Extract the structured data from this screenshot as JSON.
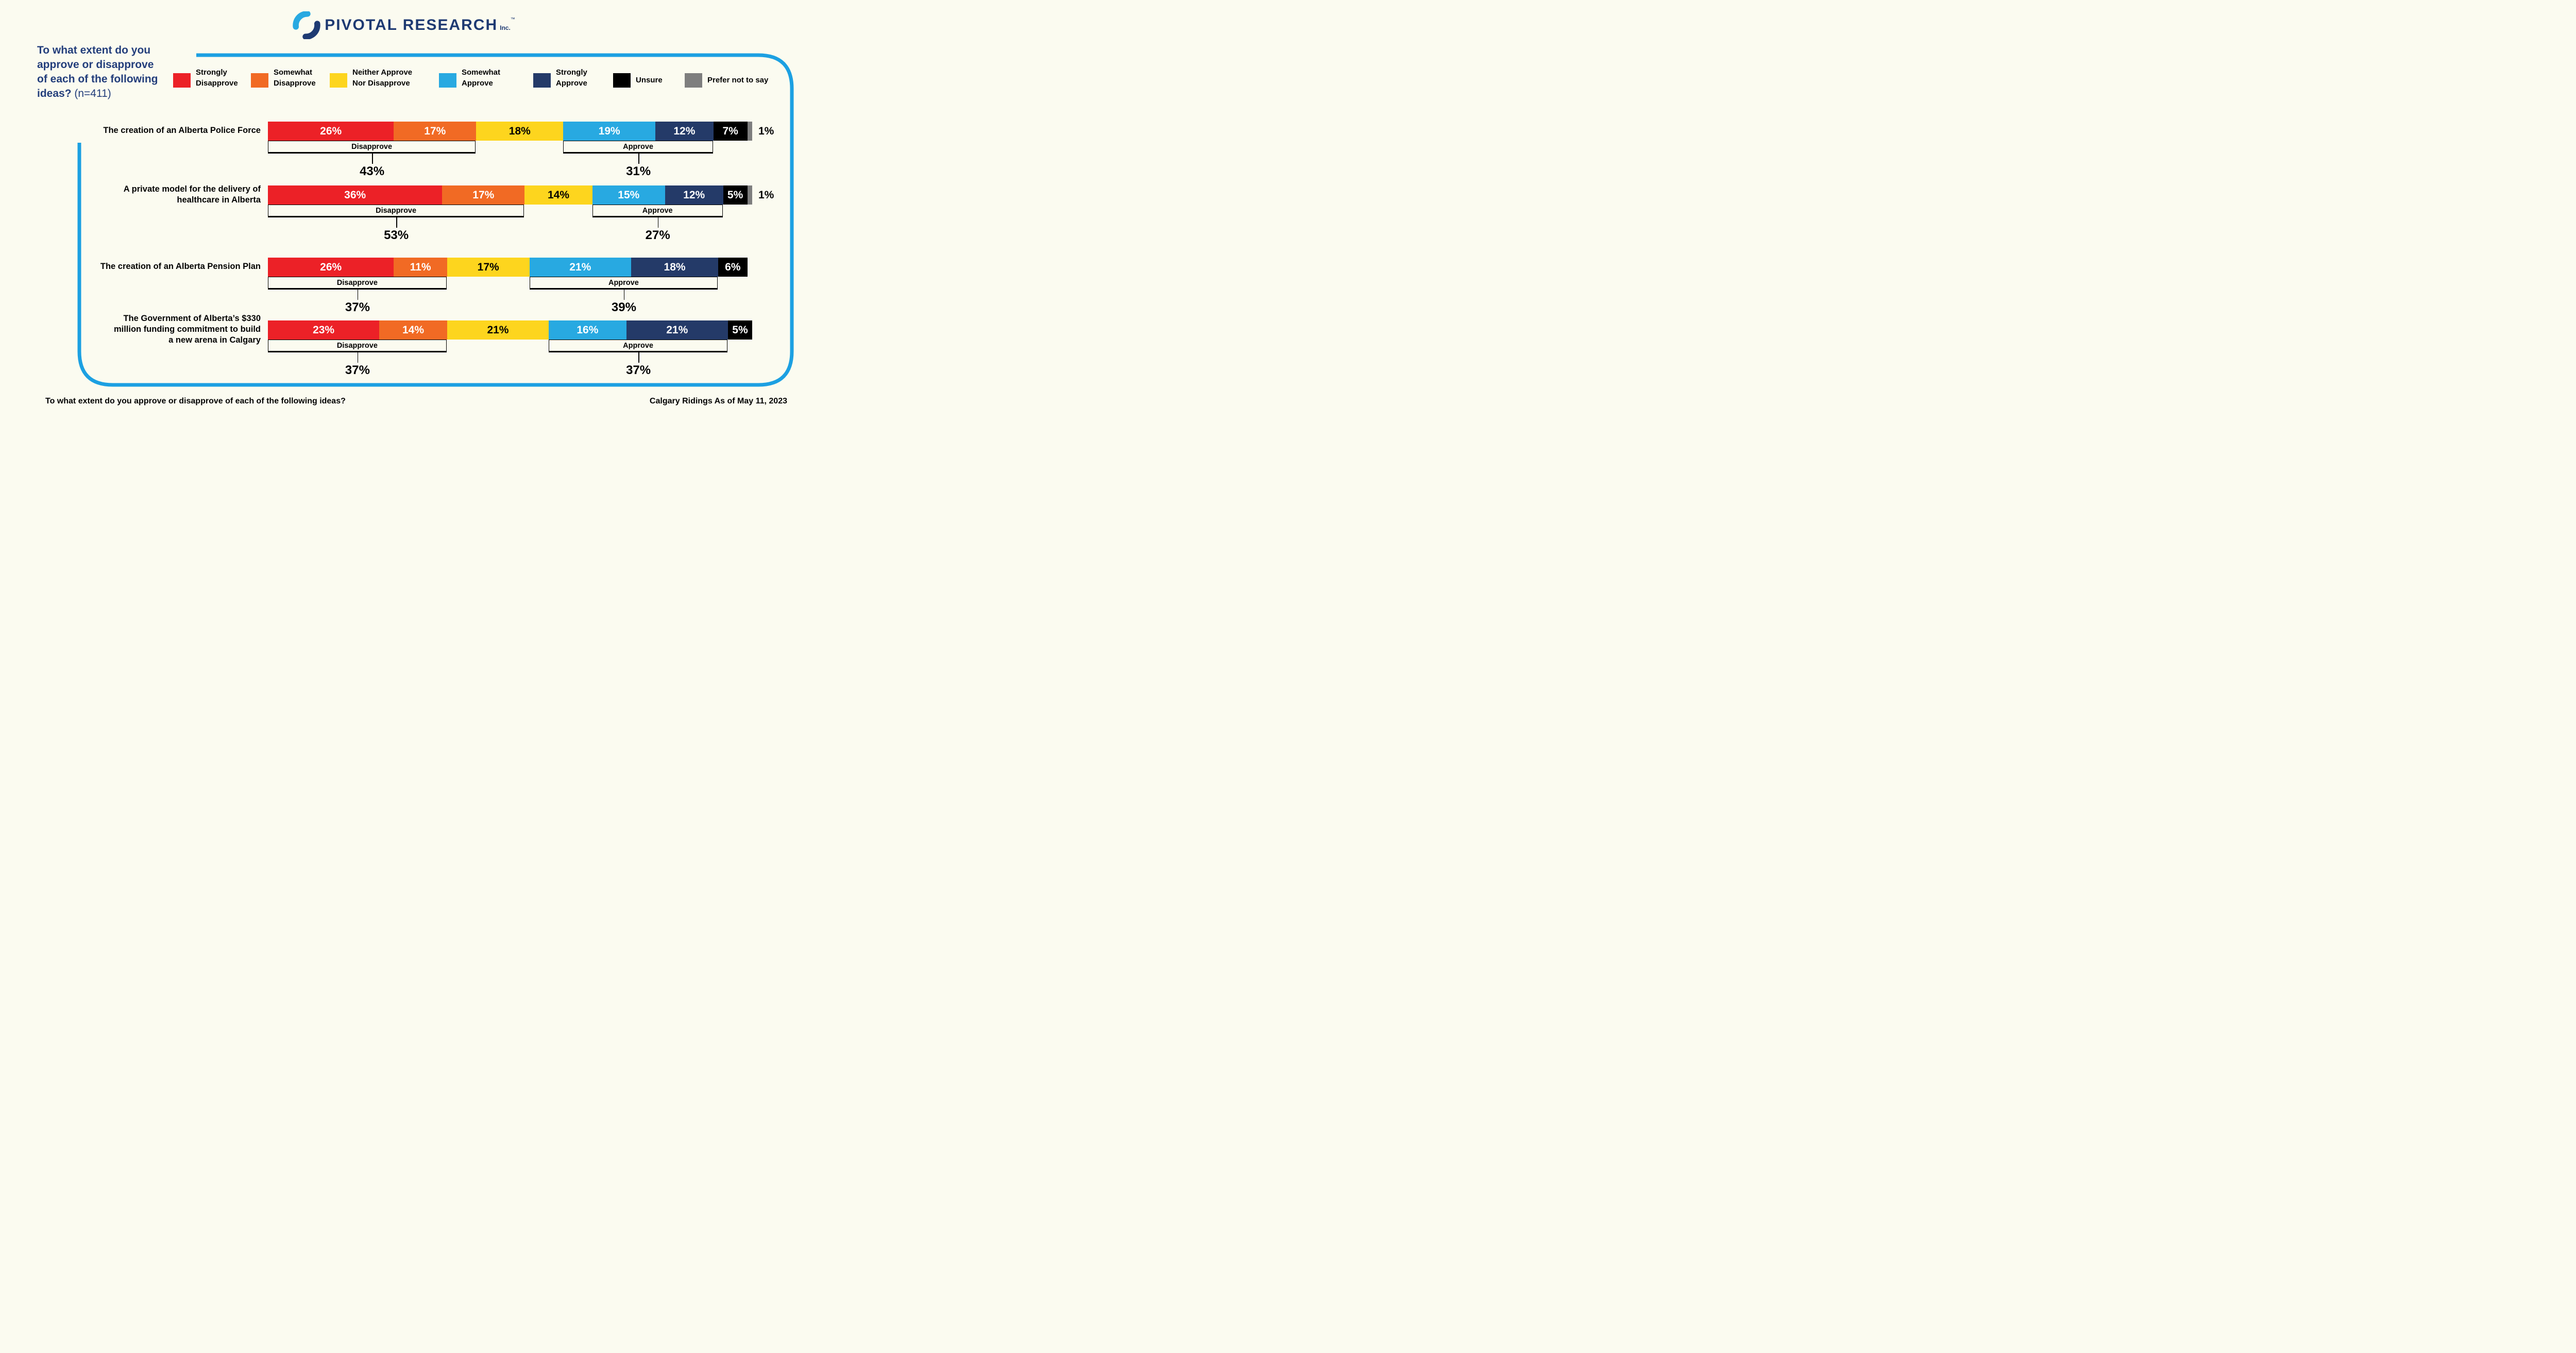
{
  "logo": {
    "name": "PIVOTAL RESEARCH",
    "suffix": "Inc.",
    "trademark": "™"
  },
  "title": {
    "line1": "To what extent do you",
    "line2": "approve or disapprove",
    "line3": "of each of the following",
    "line4_bold": "ideas?",
    "line4_note": "(n=411)"
  },
  "labels": {
    "disapprove": "Disapprove",
    "approve": "Approve"
  },
  "legend": [
    {
      "lines": [
        "Strongly",
        "Disapprove"
      ],
      "color": "#EC2127"
    },
    {
      "lines": [
        "Somewhat",
        "Disapprove"
      ],
      "color": "#F16A24"
    },
    {
      "lines": [
        "Neither Approve",
        "Nor Disapprove"
      ],
      "color": "#FDD51E"
    },
    {
      "lines": [
        "Somewhat",
        "Approve"
      ],
      "color": "#28A9E1"
    },
    {
      "lines": [
        "Strongly",
        "Approve"
      ],
      "color": "#243A68"
    },
    {
      "lines": [
        "Unsure"
      ],
      "color": "#000000"
    },
    {
      "lines": [
        "Prefer not to say"
      ],
      "color": "#7E7E7E"
    }
  ],
  "chart_data": {
    "type": "bar",
    "stacked": true,
    "unit": "%",
    "categories": [
      "The creation of an Alberta Police Force",
      "A private model for the delivery of healthcare in Alberta",
      "The creation of an Alberta Pension Plan",
      "The Government of Alberta’s $330 million funding commitment to build a new arena in Calgary"
    ],
    "category_lines": [
      [
        "The creation of an Alberta Police Force"
      ],
      [
        "A private model for the delivery of",
        "healthcare in Alberta"
      ],
      [
        "The creation of an Alberta Pension Plan"
      ],
      [
        "The Government of Alberta’s $330",
        "million funding commitment to build",
        "a new arena in Calgary"
      ]
    ],
    "series": [
      {
        "name": "Strongly Disapprove",
        "color": "#EC2127",
        "text_color": "#FFFFFF",
        "values": [
          26,
          36,
          26,
          23
        ]
      },
      {
        "name": "Somewhat Disapprove",
        "color": "#F16A24",
        "text_color": "#FFFFFF",
        "values": [
          17,
          17,
          11,
          14
        ]
      },
      {
        "name": "Neither Approve Nor Disapprove",
        "color": "#FDD51E",
        "text_color": "#000000",
        "values": [
          18,
          14,
          17,
          21
        ]
      },
      {
        "name": "Somewhat Approve",
        "color": "#28A9E1",
        "text_color": "#FFFFFF",
        "values": [
          19,
          15,
          21,
          16
        ]
      },
      {
        "name": "Strongly Approve",
        "color": "#243A68",
        "text_color": "#FFFFFF",
        "values": [
          12,
          12,
          18,
          21
        ]
      },
      {
        "name": "Unsure",
        "color": "#000000",
        "text_color": "#FFFFFF",
        "values": [
          7,
          5,
          6,
          5
        ]
      },
      {
        "name": "Prefer not to say",
        "color": "#7E7E7E",
        "text_color": "#FFFFFF",
        "values": [
          1,
          1,
          0,
          0
        ]
      }
    ],
    "disapprove_totals": [
      "43%",
      "53%",
      "37%",
      "37%"
    ],
    "approve_totals": [
      "31%",
      "27%",
      "39%",
      "37%"
    ],
    "outside_labels": [
      "1%",
      "1%",
      "",
      ""
    ],
    "xlim": [
      0,
      100
    ],
    "legend_position": "top"
  },
  "frame_color": "#1CA0E2",
  "footer": {
    "question": "To what extent do you approve or disapprove of each of the following ideas?",
    "source": "Calgary Ridings As of May 11, 2023"
  }
}
